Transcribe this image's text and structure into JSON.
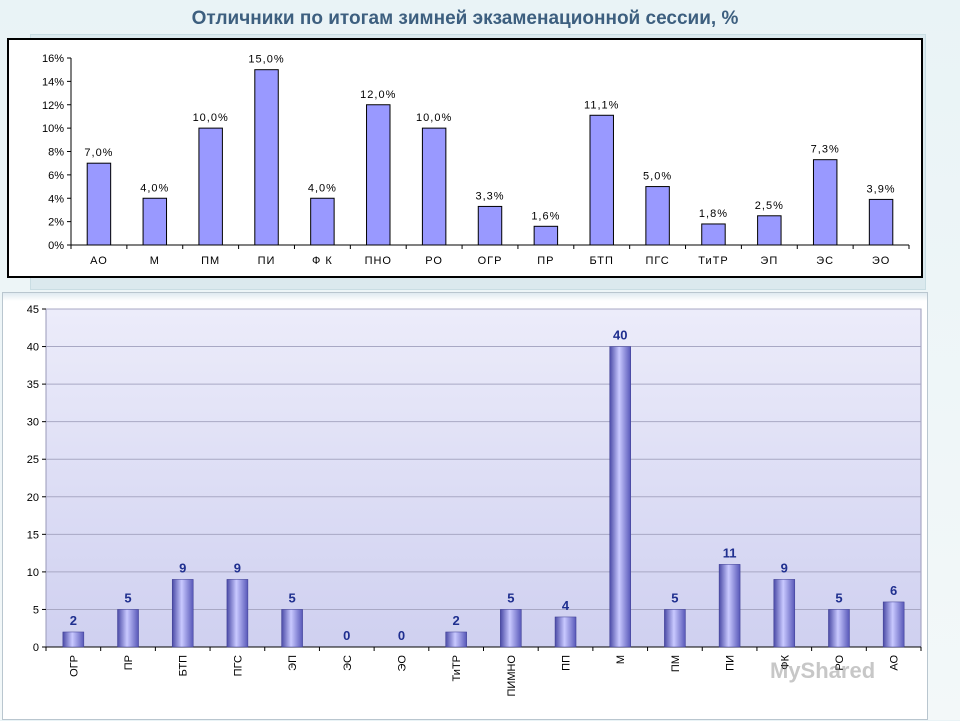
{
  "title": "Отличники по итогам зимней экзаменационной сессии, %",
  "watermark": "MyShared",
  "chart_data": [
    {
      "type": "bar",
      "categories": [
        "АО",
        "М",
        "ПМ",
        "ПИ",
        "Ф К",
        "ПНО",
        "РО",
        "ОГР",
        "ПР",
        "БТП",
        "ПГС",
        "ТиТР",
        "ЭП",
        "ЭС",
        "ЭО"
      ],
      "values": [
        7.0,
        4.0,
        10.0,
        15.0,
        4.0,
        12.0,
        10.0,
        3.3,
        1.6,
        11.1,
        5.0,
        1.8,
        2.5,
        7.3,
        3.9
      ],
      "data_labels": [
        "7,0%",
        "4,0%",
        "10,0%",
        "15,0%",
        "4,0%",
        "12,0%",
        "10,0%",
        "3,3%",
        "1,6%",
        "11,1%",
        "5,0%",
        "1,8%",
        "2,5%",
        "7,3%",
        "3,9%"
      ],
      "y_ticks": [
        "0%",
        "2%",
        "4%",
        "6%",
        "8%",
        "10%",
        "12%",
        "14%",
        "16%"
      ],
      "ylim": [
        0,
        16
      ],
      "colors": {
        "bar": "#9999ff",
        "bar_border": "#000000"
      }
    },
    {
      "type": "bar",
      "categories": [
        "ОГР",
        "ПР",
        "БТП",
        "ПГС",
        "ЭП",
        "ЭС",
        "ЭО",
        "ТиТР",
        "ПИМНО",
        "ПП",
        "М",
        "ПМ",
        "ПИ",
        "ФК",
        "РО",
        "АО"
      ],
      "values": [
        2,
        5,
        9,
        9,
        5,
        0,
        0,
        2,
        5,
        4,
        40,
        5,
        11,
        9,
        5,
        6
      ],
      "y_ticks": [
        "0",
        "5",
        "10",
        "15",
        "20",
        "25",
        "30",
        "35",
        "40",
        "45"
      ],
      "ylim": [
        0,
        45
      ],
      "grid": true,
      "colors": {
        "bar_dark": "#4b4ba8",
        "bar_light": "#c7c7ff",
        "label": "#1f2f8f",
        "plot_bg_top": "#e8e8f8",
        "plot_bg_bottom": "#d0d0f0"
      }
    }
  ]
}
